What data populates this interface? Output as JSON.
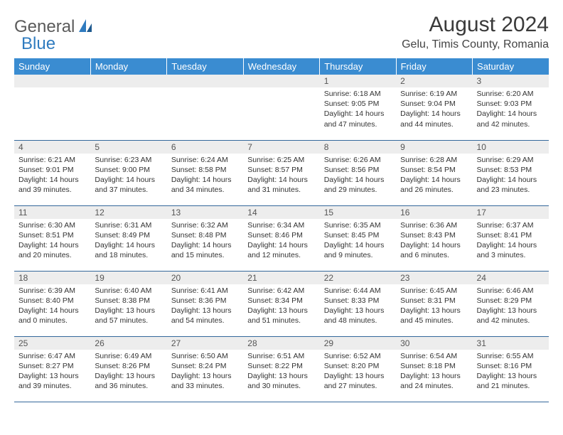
{
  "brand": {
    "part1": "General",
    "part2": "Blue"
  },
  "title": "August 2024",
  "location": "Gelu, Timis County, Romania",
  "colors": {
    "header_bg": "#3a8cd1",
    "header_text": "#ffffff",
    "daynum_bg": "#ededed",
    "border": "#34689b",
    "logo_gray": "#5a5a5a",
    "logo_blue": "#2f7bbf"
  },
  "day_headers": [
    "Sunday",
    "Monday",
    "Tuesday",
    "Wednesday",
    "Thursday",
    "Friday",
    "Saturday"
  ],
  "weeks": [
    [
      null,
      null,
      null,
      null,
      {
        "n": "1",
        "sunrise": "6:18 AM",
        "sunset": "9:05 PM",
        "dlh": "14",
        "dlm": "47"
      },
      {
        "n": "2",
        "sunrise": "6:19 AM",
        "sunset": "9:04 PM",
        "dlh": "14",
        "dlm": "44"
      },
      {
        "n": "3",
        "sunrise": "6:20 AM",
        "sunset": "9:03 PM",
        "dlh": "14",
        "dlm": "42"
      }
    ],
    [
      {
        "n": "4",
        "sunrise": "6:21 AM",
        "sunset": "9:01 PM",
        "dlh": "14",
        "dlm": "39"
      },
      {
        "n": "5",
        "sunrise": "6:23 AM",
        "sunset": "9:00 PM",
        "dlh": "14",
        "dlm": "37"
      },
      {
        "n": "6",
        "sunrise": "6:24 AM",
        "sunset": "8:58 PM",
        "dlh": "14",
        "dlm": "34"
      },
      {
        "n": "7",
        "sunrise": "6:25 AM",
        "sunset": "8:57 PM",
        "dlh": "14",
        "dlm": "31"
      },
      {
        "n": "8",
        "sunrise": "6:26 AM",
        "sunset": "8:56 PM",
        "dlh": "14",
        "dlm": "29"
      },
      {
        "n": "9",
        "sunrise": "6:28 AM",
        "sunset": "8:54 PM",
        "dlh": "14",
        "dlm": "26"
      },
      {
        "n": "10",
        "sunrise": "6:29 AM",
        "sunset": "8:53 PM",
        "dlh": "14",
        "dlm": "23"
      }
    ],
    [
      {
        "n": "11",
        "sunrise": "6:30 AM",
        "sunset": "8:51 PM",
        "dlh": "14",
        "dlm": "20"
      },
      {
        "n": "12",
        "sunrise": "6:31 AM",
        "sunset": "8:49 PM",
        "dlh": "14",
        "dlm": "18"
      },
      {
        "n": "13",
        "sunrise": "6:32 AM",
        "sunset": "8:48 PM",
        "dlh": "14",
        "dlm": "15"
      },
      {
        "n": "14",
        "sunrise": "6:34 AM",
        "sunset": "8:46 PM",
        "dlh": "14",
        "dlm": "12"
      },
      {
        "n": "15",
        "sunrise": "6:35 AM",
        "sunset": "8:45 PM",
        "dlh": "14",
        "dlm": "9"
      },
      {
        "n": "16",
        "sunrise": "6:36 AM",
        "sunset": "8:43 PM",
        "dlh": "14",
        "dlm": "6"
      },
      {
        "n": "17",
        "sunrise": "6:37 AM",
        "sunset": "8:41 PM",
        "dlh": "14",
        "dlm": "3"
      }
    ],
    [
      {
        "n": "18",
        "sunrise": "6:39 AM",
        "sunset": "8:40 PM",
        "dlh": "14",
        "dlm": "0"
      },
      {
        "n": "19",
        "sunrise": "6:40 AM",
        "sunset": "8:38 PM",
        "dlh": "13",
        "dlm": "57"
      },
      {
        "n": "20",
        "sunrise": "6:41 AM",
        "sunset": "8:36 PM",
        "dlh": "13",
        "dlm": "54"
      },
      {
        "n": "21",
        "sunrise": "6:42 AM",
        "sunset": "8:34 PM",
        "dlh": "13",
        "dlm": "51"
      },
      {
        "n": "22",
        "sunrise": "6:44 AM",
        "sunset": "8:33 PM",
        "dlh": "13",
        "dlm": "48"
      },
      {
        "n": "23",
        "sunrise": "6:45 AM",
        "sunset": "8:31 PM",
        "dlh": "13",
        "dlm": "45"
      },
      {
        "n": "24",
        "sunrise": "6:46 AM",
        "sunset": "8:29 PM",
        "dlh": "13",
        "dlm": "42"
      }
    ],
    [
      {
        "n": "25",
        "sunrise": "6:47 AM",
        "sunset": "8:27 PM",
        "dlh": "13",
        "dlm": "39"
      },
      {
        "n": "26",
        "sunrise": "6:49 AM",
        "sunset": "8:26 PM",
        "dlh": "13",
        "dlm": "36"
      },
      {
        "n": "27",
        "sunrise": "6:50 AM",
        "sunset": "8:24 PM",
        "dlh": "13",
        "dlm": "33"
      },
      {
        "n": "28",
        "sunrise": "6:51 AM",
        "sunset": "8:22 PM",
        "dlh": "13",
        "dlm": "30"
      },
      {
        "n": "29",
        "sunrise": "6:52 AM",
        "sunset": "8:20 PM",
        "dlh": "13",
        "dlm": "27"
      },
      {
        "n": "30",
        "sunrise": "6:54 AM",
        "sunset": "8:18 PM",
        "dlh": "13",
        "dlm": "24"
      },
      {
        "n": "31",
        "sunrise": "6:55 AM",
        "sunset": "8:16 PM",
        "dlh": "13",
        "dlm": "21"
      }
    ]
  ],
  "labels": {
    "sunrise": "Sunrise:",
    "sunset": "Sunset:",
    "daylight_prefix": "Daylight:",
    "hours_word": "hours",
    "and_word": "and",
    "minutes_word": "minutes."
  }
}
